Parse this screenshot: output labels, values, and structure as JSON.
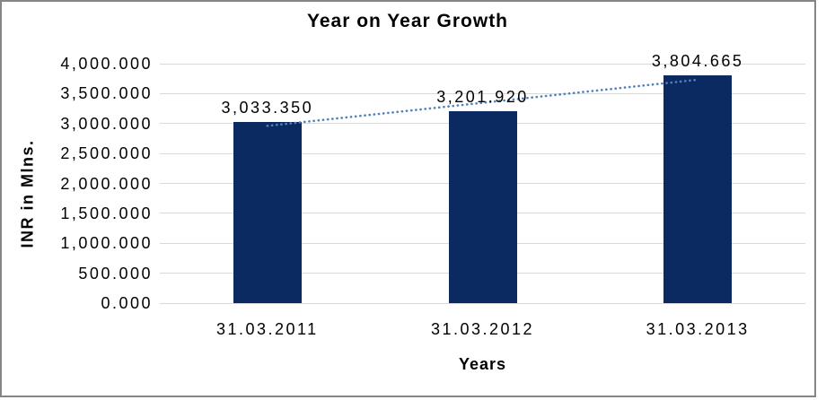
{
  "chart_data": {
    "type": "bar",
    "title": "Year on Year Growth",
    "xlabel": "Years",
    "ylabel": "INR in Mlns.",
    "categories": [
      "31.03.2011",
      "31.03.2012",
      "31.03.2013"
    ],
    "values": [
      3033.35,
      3201.92,
      3804.665
    ],
    "data_labels": [
      "3,033.350",
      "3,201.920",
      "3,804.665"
    ],
    "y_ticks": [
      {
        "value": 4000,
        "label": "4,000.000"
      },
      {
        "value": 3500,
        "label": "3,500.000"
      },
      {
        "value": 3000,
        "label": "3,000.000"
      },
      {
        "value": 2500,
        "label": "2,500.000"
      },
      {
        "value": 2000,
        "label": "2,000.000"
      },
      {
        "value": 1500,
        "label": "1,500.000"
      },
      {
        "value": 1000,
        "label": "1,000.000"
      },
      {
        "value": 500,
        "label": "500.000"
      },
      {
        "value": 0,
        "label": "0.000"
      }
    ],
    "ylim": [
      0,
      4000
    ],
    "grid": true,
    "legend_position": "none",
    "trendline": {
      "type": "linear",
      "style": "dotted",
      "color": "#4f81bd"
    },
    "colors": {
      "bar": "#0c2a62",
      "gridline": "#d9d9d9",
      "text": "#000000",
      "frame_border": "#858585",
      "background": "#ffffff"
    }
  }
}
